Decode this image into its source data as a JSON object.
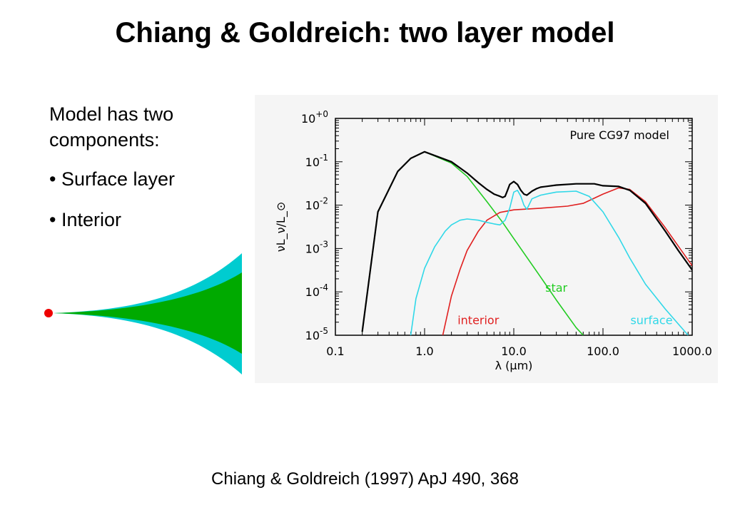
{
  "title": "Chiang & Goldreich: two layer model",
  "intro": "Model has two components:",
  "bullets": [
    "• Surface layer",
    "• Interior"
  ],
  "citation": "Chiang & Goldreich (1997) ApJ 490, 368",
  "colors": {
    "total": "#000000",
    "star": "#22cc22",
    "interior": "#e02020",
    "surface": "#30d8e8",
    "disk_interior": "#00aa00",
    "disk_surface": "#00ccd0",
    "star_dot": "#ee0000"
  },
  "icons": {
    "disk_diagram": "flared-disk-icon",
    "star_marker": "star-dot-icon"
  },
  "chart_data": {
    "type": "line",
    "title": "Pure CG97 model",
    "xlabel": "λ (μm)",
    "ylabel": "νL_ν/L_⊙",
    "xscale": "log",
    "yscale": "log",
    "xlim": [
      0.1,
      1000
    ],
    "ylim": [
      1e-05,
      1.0
    ],
    "xticks": [
      "0.1",
      "1.0",
      "10.0",
      "100.0",
      "1000.0"
    ],
    "yticks": [
      {
        "exp": "-5",
        "value": 1e-05
      },
      {
        "exp": "-4",
        "value": 0.0001
      },
      {
        "exp": "-3",
        "value": 0.001
      },
      {
        "exp": "-2",
        "value": 0.01
      },
      {
        "exp": "-1",
        "value": 0.1
      },
      {
        "exp": "+0",
        "value": 1
      }
    ],
    "tick_base": "10",
    "series": [
      {
        "name": "star",
        "color_key": "star",
        "x": [
          0.2,
          0.3,
          0.5,
          0.7,
          1.0,
          2.0,
          3.0,
          5.0,
          7.5,
          10,
          20,
          30,
          50,
          60
        ],
        "y": [
          1.2e-05,
          0.007,
          0.06,
          0.12,
          0.17,
          0.093,
          0.046,
          0.012,
          0.004,
          0.0017,
          0.00022,
          6.5e-05,
          1.5e-05,
          1e-05
        ]
      },
      {
        "name": "interior",
        "color_key": "interior",
        "x": [
          1.6,
          2.0,
          2.5,
          3.0,
          4.0,
          5.0,
          7.0,
          10,
          20,
          40,
          60,
          100,
          150,
          200,
          300,
          500,
          1000
        ],
        "y": [
          1e-05,
          8e-05,
          0.00033,
          0.0009,
          0.0025,
          0.0045,
          0.0068,
          0.0078,
          0.0085,
          0.0095,
          0.011,
          0.018,
          0.025,
          0.023,
          0.012,
          0.003,
          0.0004
        ]
      },
      {
        "name": "surface",
        "color_key": "surface",
        "x": [
          0.7,
          0.8,
          1.0,
          1.3,
          1.7,
          2.0,
          2.5,
          3.0,
          4.0,
          5.0,
          6.0,
          7.0,
          8.0,
          9.0,
          10,
          11,
          12,
          13,
          14,
          16,
          20,
          30,
          50,
          70,
          100,
          150,
          200,
          300,
          500,
          900
        ],
        "y": [
          1e-05,
          7e-05,
          0.00035,
          0.0011,
          0.0025,
          0.0035,
          0.0045,
          0.0048,
          0.0045,
          0.004,
          0.0037,
          0.0035,
          0.0045,
          0.0085,
          0.02,
          0.022,
          0.016,
          0.01,
          0.008,
          0.014,
          0.017,
          0.02,
          0.021,
          0.016,
          0.007,
          0.0018,
          0.0006,
          0.00015,
          4e-05,
          1e-05
        ]
      },
      {
        "name": "total",
        "color_key": "total",
        "x": [
          0.2,
          0.3,
          0.5,
          0.7,
          1.0,
          2.0,
          3.0,
          4.0,
          5.0,
          6.0,
          7.0,
          7.5,
          8.0,
          8.5,
          9.0,
          10,
          11,
          12,
          13,
          14,
          16,
          18,
          20,
          30,
          50,
          80,
          100,
          150,
          200,
          300,
          500,
          700,
          1000
        ],
        "y": [
          1.2e-05,
          0.007,
          0.06,
          0.12,
          0.17,
          0.1,
          0.055,
          0.033,
          0.023,
          0.018,
          0.016,
          0.015,
          0.016,
          0.022,
          0.03,
          0.035,
          0.03,
          0.022,
          0.018,
          0.017,
          0.021,
          0.024,
          0.026,
          0.029,
          0.031,
          0.031,
          0.028,
          0.027,
          0.022,
          0.011,
          0.0025,
          0.0009,
          0.00032
        ]
      }
    ],
    "annotations": [
      {
        "text": "star",
        "series": "star"
      },
      {
        "text": "interior",
        "series": "interior"
      },
      {
        "text": "surface",
        "series": "surface"
      }
    ]
  }
}
